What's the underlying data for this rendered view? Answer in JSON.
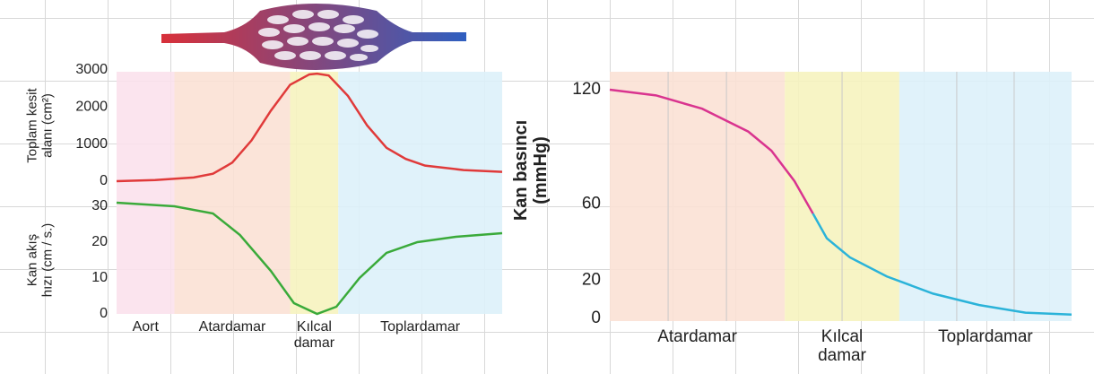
{
  "chart_data": [
    {
      "type": "line",
      "ylabel": "Toplam kesit\nalanı (cm²)",
      "xlim": [
        0,
        100
      ],
      "ylim": [
        0,
        3000
      ],
      "yticks": [
        0,
        1000,
        2000,
        3000
      ],
      "x": [
        0,
        10,
        20,
        25,
        30,
        35,
        40,
        45,
        50,
        52,
        55,
        60,
        65,
        70,
        75,
        80,
        90,
        100
      ],
      "series": [
        {
          "color": "#e03a3a",
          "values": [
            0,
            30,
            100,
            200,
            500,
            1100,
            1900,
            2600,
            2880,
            2900,
            2850,
            2300,
            1500,
            900,
            600,
            420,
            300,
            250
          ]
        }
      ],
      "regions": [
        {
          "label": "Aort",
          "color": "#fbe0ec",
          "range": [
            0,
            15
          ]
        },
        {
          "label": "Atardamar",
          "color": "#fbe0d4",
          "range": [
            15,
            45
          ]
        },
        {
          "label": "Kılcal\ndamar",
          "color": "#f6f2bd",
          "range": [
            45,
            57.5
          ]
        },
        {
          "label": "Toplardamar",
          "color": "#dcf0f9",
          "range": [
            57.5,
            100
          ]
        }
      ]
    },
    {
      "type": "line",
      "ylabel": "Kan akış\nhızı (cm / s.)",
      "xlim": [
        0,
        100
      ],
      "ylim": [
        0,
        32
      ],
      "yticks": [
        0,
        10,
        20,
        30
      ],
      "x": [
        0,
        15,
        25,
        32,
        40,
        46,
        52,
        57,
        63,
        70,
        78,
        88,
        100
      ],
      "series": [
        {
          "color": "#3aaa3a",
          "values": [
            31,
            30,
            28,
            22,
            12,
            3,
            0,
            2,
            10,
            17,
            20,
            21.5,
            22.5
          ]
        }
      ]
    },
    {
      "type": "line",
      "ylabel": "Kan basıncı\n(mmHg)",
      "xlim": [
        0,
        100
      ],
      "ylim": [
        0,
        129.4
      ],
      "yticks": [
        0,
        20,
        60,
        120
      ],
      "x": [
        0,
        10,
        20,
        30,
        35,
        40,
        44,
        47,
        52,
        60,
        70,
        80,
        90,
        100
      ],
      "series": [
        {
          "color": "#d9348f",
          "values": [
            120,
            117,
            110,
            98,
            88,
            72,
            55,
            null,
            null,
            null,
            null,
            null,
            null,
            null
          ]
        },
        {
          "color": "#2bb3d9",
          "values": [
            null,
            null,
            null,
            null,
            null,
            null,
            55,
            42,
            32,
            22,
            13,
            7,
            3,
            2
          ]
        }
      ],
      "regions": [
        {
          "label": "Atardamar",
          "color": "#fbe0d4",
          "range": [
            0,
            37.9
          ]
        },
        {
          "label": "Kılcal\ndamar",
          "color": "#f6f2bd",
          "range": [
            37.9,
            62.7
          ]
        },
        {
          "label": "Toplardamar",
          "color": "#dcf0f9",
          "range": [
            62.7,
            100
          ]
        }
      ]
    }
  ]
}
